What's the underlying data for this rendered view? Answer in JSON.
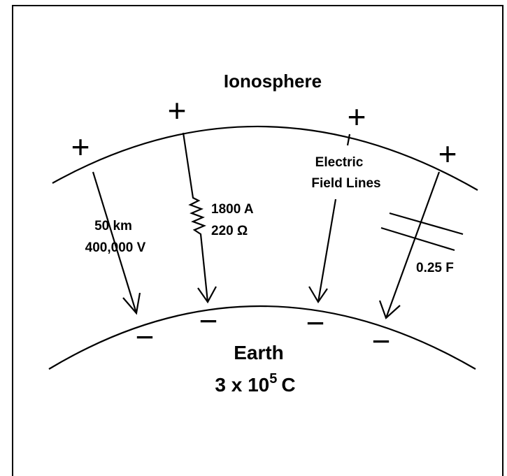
{
  "upper_layer": {
    "label": "Ionosphere",
    "signs": [
      "+",
      "+",
      "+",
      "+"
    ]
  },
  "lower_layer": {
    "label": "Earth",
    "signs": [
      "−",
      "−",
      "−",
      "−"
    ],
    "charge": {
      "base": "3 x 10",
      "exponent": "5",
      "unit": "C"
    }
  },
  "field_label": [
    "Electric",
    "Field Lines"
  ],
  "distance": "50 km",
  "voltage": "400,000 V",
  "current": "1800 A",
  "resistance": "220 Ω",
  "capacitance": "0.25 F"
}
